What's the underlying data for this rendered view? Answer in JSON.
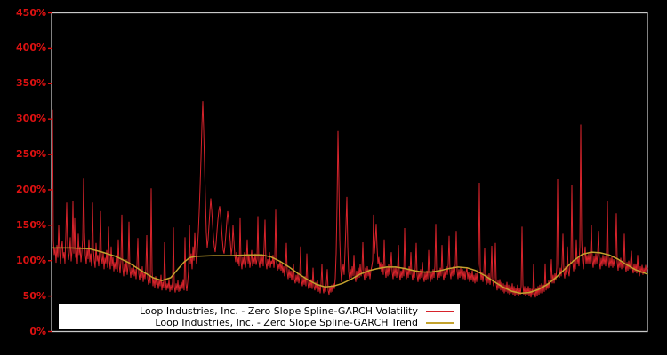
{
  "figure": {
    "background": "#000000",
    "plot_border_color": "#c8c8c8",
    "title": ""
  },
  "chart_data": {
    "type": "line",
    "title": "",
    "xlabel": "",
    "ylabel": "",
    "ylim": [
      0,
      450
    ],
    "grid": false,
    "x_axis": {
      "visible_labels": false
    },
    "y_axis": {
      "tick_values": [
        0,
        50,
        100,
        150,
        200,
        250,
        300,
        350,
        400,
        450
      ],
      "tick_labels": [
        "0%",
        "50%",
        "100%",
        "150%",
        "200%",
        "250%",
        "300%",
        "350%",
        "400%",
        "450%"
      ],
      "label_color": "#dd1111",
      "unit": "percent"
    },
    "legend": {
      "position": "lower-center-inside",
      "background": "#ffffff",
      "text_color": "#000000"
    },
    "series": [
      {
        "name": "Loop Industries, Inc. - Zero Slope Spline-GARCH Volatility",
        "color": "#d7232b",
        "line_width": 1,
        "x0": 59,
        "dx": 1,
        "values": [
          313,
          128,
          108,
          118,
          97,
          122,
          104,
          150,
          112,
          95,
          118,
          128,
          103,
          112,
          96,
          135,
          182,
          120,
          101,
          112,
          133,
          99,
          114,
          184,
          110,
          160,
          104,
          117,
          95,
          138,
          108,
          120,
          98,
          112,
          130,
          216,
          140,
          108,
          95,
          118,
          102,
          130,
          98,
          110,
          92,
          182,
          115,
          100,
          90,
          125,
          99,
          108,
          92,
          115,
          170,
          105,
          95,
          112,
          88,
          104,
          96,
          115,
          90,
          148,
          100,
          88,
          120,
          92,
          105,
          85,
          98,
          88,
          108,
          84,
          130,
          95,
          82,
          100,
          165,
          90,
          78,
          95,
          85,
          102,
          80,
          92,
          155,
          88,
          76,
          90,
          80,
          95,
          78,
          88,
          74,
          94,
          132,
          82,
          72,
          86,
          76,
          92,
          70,
          84,
          74,
          88,
          136,
          76,
          66,
          80,
          68,
          202,
          84,
          64,
          76,
          62,
          78,
          66,
          72,
          60,
          74,
          64,
          80,
          58,
          70,
          62,
          126,
          72,
          58,
          68,
          60,
          74,
          56,
          66,
          58,
          70,
          147,
          64,
          55,
          68,
          58,
          72,
          56,
          66,
          57,
          70,
          60,
          74,
          58,
          133,
          68,
          57,
          70,
          85,
          150,
          95,
          110,
          88,
          120,
          100,
          140,
          112,
          95,
          118,
          140,
          170,
          205,
          245,
          290,
          325,
          285,
          235,
          185,
          140,
          118,
          130,
          150,
          170,
          188,
          172,
          152,
          133,
          120,
          112,
          125,
          142,
          158,
          170,
          177,
          165,
          148,
          130,
          115,
          110,
          122,
          138,
          155,
          170,
          158,
          142,
          126,
          108,
          118,
          150,
          128,
          108,
          98,
          112,
          95,
          105,
          92,
          160,
          100,
          88,
          105,
          94,
          112,
          90,
          102,
          130,
          96,
          108,
          90,
          100,
          115,
          92,
          104,
          96,
          110,
          94,
          102,
          163,
          100,
          90,
          106,
          95,
          108,
          92,
          120,
          158,
          98,
          88,
          102,
          92,
          112,
          90,
          100,
          95,
          108,
          90,
          104,
          172,
          98,
          86,
          96,
          88,
          100,
          86,
          96,
          82,
          92,
          78,
          90,
          125,
          84,
          74,
          88,
          76,
          86,
          72,
          84,
          95,
          74,
          68,
          80,
          70,
          82,
          68,
          78,
          120,
          72,
          64,
          76,
          66,
          78,
          64,
          110,
          70,
          60,
          72,
          62,
          74,
          60,
          90,
          64,
          58,
          70,
          60,
          72,
          56,
          66,
          54,
          68,
          95,
          62,
          54,
          64,
          56,
          68,
          88,
          58,
          52,
          64,
          55,
          66,
          56,
          68,
          60,
          75,
          110,
          180,
          283,
          210,
          130,
          90,
          70,
          85,
          95,
          80,
          115,
          150,
          190,
          120,
          85,
          72,
          88,
          76,
          92,
          78,
          108,
          80,
          70,
          86,
          74,
          90,
          76,
          95,
          78,
          88,
          126,
          82,
          72,
          90,
          76,
          92,
          78,
          88,
          74,
          86,
          92,
          100,
          165,
          110,
          130,
          152,
          118,
          95,
          105,
          88,
          98,
          84,
          95,
          80,
          130,
          88,
          76,
          92,
          78,
          95,
          80,
          90,
          112,
          84,
          74,
          90,
          78,
          92,
          76,
          88,
          122,
          82,
          72,
          86,
          76,
          90,
          78,
          146,
          86,
          74,
          88,
          76,
          92,
          80,
          112,
          82,
          72,
          86,
          76,
          90,
          125,
          80,
          70,
          84,
          74,
          88,
          76,
          98,
          78,
          70,
          84,
          72,
          86,
          74,
          115,
          80,
          70,
          84,
          74,
          88,
          76,
          92,
          152,
          84,
          72,
          86,
          76,
          90,
          78,
          122,
          82,
          72,
          86,
          76,
          92,
          80,
          95,
          135,
          84,
          74,
          90,
          78,
          92,
          80,
          95,
          142,
          86,
          74,
          88,
          76,
          90,
          78,
          88,
          74,
          86,
          72,
          84,
          90,
          74,
          84,
          70,
          82,
          72,
          86,
          70,
          80,
          68,
          82,
          70,
          84,
          95,
          210,
          90,
          72,
          84,
          70,
          82,
          118,
          74,
          66,
          80,
          68,
          82,
          66,
          78,
          121,
          72,
          64,
          76,
          125,
          68,
          58,
          72,
          60,
          74,
          58,
          70,
          56,
          68,
          54,
          66,
          56,
          70,
          54,
          66,
          52,
          64,
          54,
          68,
          52,
          64,
          50,
          62,
          52,
          66,
          50,
          62,
          52,
          64,
          148,
          66,
          52,
          64,
          50,
          62,
          52,
          64,
          50,
          62,
          48,
          60,
          52,
          95,
          56,
          48,
          62,
          50,
          64,
          52,
          66,
          54,
          68,
          54,
          66,
          56,
          96,
          58,
          68,
          60,
          72,
          62,
          76,
          102,
          68,
          80,
          68,
          82,
          72,
          90,
          215,
          95,
          76,
          90,
          78,
          95,
          138,
          85,
          75,
          92,
          80,
          120,
          86,
          78,
          95,
          100,
          207,
          98,
          85,
          100,
          88,
          130,
          95,
          105,
          92,
          120,
          292,
          130,
          100,
          88,
          105,
          120,
          95,
          108,
          96,
          110,
          95,
          112,
          151,
          100,
          90,
          106,
          94,
          110,
          96,
          108,
          142,
          98,
          88,
          104,
          92,
          108,
          94,
          106,
          92,
          110,
          184,
          100,
          90,
          104,
          92,
          106,
          90,
          102,
          92,
          110,
          167,
          98,
          86,
          100,
          90,
          104,
          88,
          100,
          90,
          138,
          94,
          84,
          98,
          86,
          100,
          88,
          98,
          114,
          90,
          82,
          96,
          84,
          96,
          82,
          108,
          86,
          78,
          92,
          82,
          94,
          80,
          90,
          82,
          94,
          84,
          90
        ]
      },
      {
        "name": "Loop Industries, Inc. - Zero Slope Spline-GARCH Trend",
        "color": "#c3a22e",
        "line_width": 1.5,
        "points": [
          [
            59,
            118
          ],
          [
            80,
            118
          ],
          [
            100,
            117
          ],
          [
            115,
            112
          ],
          [
            130,
            106
          ],
          [
            145,
            97
          ],
          [
            160,
            85
          ],
          [
            172,
            76
          ],
          [
            182,
            72
          ],
          [
            192,
            76
          ],
          [
            200,
            88
          ],
          [
            207,
            98
          ],
          [
            213,
            104
          ],
          [
            220,
            106
          ],
          [
            240,
            107
          ],
          [
            260,
            107
          ],
          [
            280,
            108
          ],
          [
            295,
            108
          ],
          [
            305,
            105
          ],
          [
            315,
            99
          ],
          [
            325,
            91
          ],
          [
            335,
            82
          ],
          [
            345,
            74
          ],
          [
            355,
            67
          ],
          [
            365,
            63
          ],
          [
            375,
            64
          ],
          [
            385,
            68
          ],
          [
            395,
            74
          ],
          [
            405,
            81
          ],
          [
            415,
            86
          ],
          [
            425,
            89
          ],
          [
            435,
            91
          ],
          [
            445,
            91
          ],
          [
            455,
            89
          ],
          [
            465,
            86
          ],
          [
            475,
            84
          ],
          [
            485,
            84
          ],
          [
            495,
            86
          ],
          [
            505,
            89
          ],
          [
            515,
            91
          ],
          [
            525,
            90
          ],
          [
            535,
            86
          ],
          [
            545,
            79
          ],
          [
            555,
            71
          ],
          [
            565,
            63
          ],
          [
            575,
            57
          ],
          [
            585,
            54
          ],
          [
            595,
            55
          ],
          [
            605,
            59
          ],
          [
            615,
            66
          ],
          [
            625,
            76
          ],
          [
            635,
            88
          ],
          [
            645,
            100
          ],
          [
            655,
            109
          ],
          [
            665,
            112
          ],
          [
            675,
            111
          ],
          [
            685,
            108
          ],
          [
            695,
            102
          ],
          [
            705,
            94
          ],
          [
            715,
            87
          ],
          [
            728,
            81
          ]
        ]
      }
    ]
  }
}
